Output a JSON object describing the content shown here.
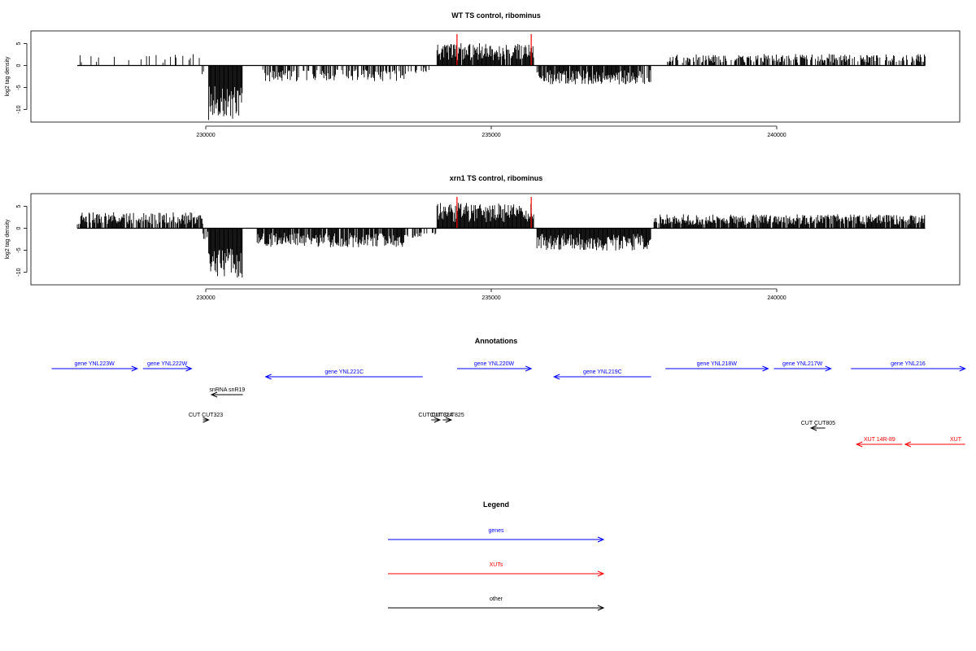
{
  "chart_data": [
    {
      "type": "bar",
      "title": "WT TS control, ribominus",
      "xlabel": "",
      "ylabel": "log2 tag density",
      "xlim": [
        227500,
        243000
      ],
      "ylim": [
        -12.5,
        7.5
      ],
      "xticks": [
        230000,
        235000,
        240000
      ],
      "yticks": [
        -10,
        -5,
        0,
        5
      ],
      "markers": [
        234400,
        235700
      ],
      "marker_color": "#ff0000",
      "segments": [
        {
          "from": 227750,
          "to": 229900,
          "sign": 1,
          "level": 1.8,
          "density": 0.12
        },
        {
          "from": 229900,
          "to": 230000,
          "sign": -1,
          "level": 1.5,
          "density": 0.25
        },
        {
          "from": 230050,
          "to": 230650,
          "sign": -1,
          "level": 10.5,
          "density": 1.0
        },
        {
          "from": 231000,
          "to": 233500,
          "sign": -1,
          "level": 2.5,
          "density": 0.55
        },
        {
          "from": 233500,
          "to": 234050,
          "sign": -1,
          "level": 1.2,
          "density": 0.2
        },
        {
          "from": 234050,
          "to": 235750,
          "sign": 1,
          "level": 3.5,
          "density": 0.95
        },
        {
          "from": 235800,
          "to": 237800,
          "sign": -1,
          "level": 3.0,
          "density": 0.9
        },
        {
          "from": 238050,
          "to": 242600,
          "sign": 1,
          "level": 1.8,
          "density": 0.55
        }
      ]
    },
    {
      "type": "bar",
      "title": "xrn1 TS control, ribominus",
      "xlabel": "",
      "ylabel": "log2 tag density",
      "xlim": [
        227500,
        243000
      ],
      "ylim": [
        -12.5,
        7.5
      ],
      "xticks": [
        230000,
        235000,
        240000
      ],
      "yticks": [
        -10,
        -5,
        0,
        5
      ],
      "markers": [
        234400,
        235700
      ],
      "marker_color": "#ff0000",
      "segments": [
        {
          "from": 227750,
          "to": 229950,
          "sign": 1,
          "level": 2.5,
          "density": 0.75
        },
        {
          "from": 229950,
          "to": 230050,
          "sign": -1,
          "level": 2.0,
          "density": 0.5
        },
        {
          "from": 230050,
          "to": 230650,
          "sign": -1,
          "level": 10.0,
          "density": 1.0
        },
        {
          "from": 230900,
          "to": 233500,
          "sign": -1,
          "level": 3.0,
          "density": 0.85
        },
        {
          "from": 233500,
          "to": 234050,
          "sign": -1,
          "level": 1.5,
          "density": 0.4
        },
        {
          "from": 234050,
          "to": 235750,
          "sign": 1,
          "level": 4.0,
          "density": 1.0
        },
        {
          "from": 235800,
          "to": 237800,
          "sign": -1,
          "level": 3.5,
          "density": 1.0
        },
        {
          "from": 237850,
          "to": 242600,
          "sign": 1,
          "level": 2.2,
          "density": 0.9
        }
      ]
    }
  ],
  "annotations": {
    "title": "Annotations",
    "items": [
      {
        "label": "gene YNL223W",
        "start": 227300,
        "end": 228800,
        "strand": "+",
        "color": "#0000ff",
        "row": 0
      },
      {
        "label": "gene YNL222W",
        "start": 228900,
        "end": 229750,
        "strand": "+",
        "color": "#0000ff",
        "row": 0
      },
      {
        "label": "gene YNL221C",
        "start": 233800,
        "end": 231050,
        "strand": "-",
        "color": "#0000ff",
        "row": 1
      },
      {
        "label": "gene YNL220W",
        "start": 234400,
        "end": 235700,
        "strand": "+",
        "color": "#0000ff",
        "row": 0
      },
      {
        "label": "gene YNL219C",
        "start": 237800,
        "end": 236100,
        "strand": "-",
        "color": "#0000ff",
        "row": 1
      },
      {
        "label": "gene YNL218W",
        "start": 238050,
        "end": 239850,
        "strand": "+",
        "color": "#0000ff",
        "row": 0
      },
      {
        "label": "gene YNL217W",
        "start": 239950,
        "end": 240950,
        "strand": "+",
        "color": "#0000ff",
        "row": 0
      },
      {
        "label": "gene YNL216",
        "start": 241300,
        "end": 243300,
        "strand": "+",
        "color": "#0000ff",
        "row": 0
      },
      {
        "label": "snRNA snR19",
        "start": 230650,
        "end": 230100,
        "strand": "-",
        "color": "#000000",
        "row": 2
      },
      {
        "label": "CUT CUT323",
        "start": 229950,
        "end": 230050,
        "strand": "+",
        "color": "#000000",
        "row": 3
      },
      {
        "label": "CUT CUT324",
        "start": 233950,
        "end": 234100,
        "strand": "+",
        "color": "#000000",
        "row": 3
      },
      {
        "label": "CUT CUT825",
        "start": 234150,
        "end": 234300,
        "strand": "+",
        "color": "#000000",
        "row": 3
      },
      {
        "label": "CUT CUT805",
        "start": 240850,
        "end": 240600,
        "strand": "-",
        "color": "#000000",
        "row": 4
      },
      {
        "label": "XUT 14R-89",
        "start": 242200,
        "end": 241400,
        "strand": "-",
        "color": "#ff0000",
        "row": 5
      },
      {
        "label": "XUT",
        "start": 243300,
        "end": 242250,
        "strand": "-",
        "color": "#ff0000",
        "row": 5
      }
    ]
  },
  "legend": {
    "title": "Legend",
    "items": [
      {
        "label": "genes",
        "color": "#0000ff"
      },
      {
        "label": "XUTs",
        "color": "#ff0000"
      },
      {
        "label": "other",
        "color": "#000000"
      }
    ]
  }
}
